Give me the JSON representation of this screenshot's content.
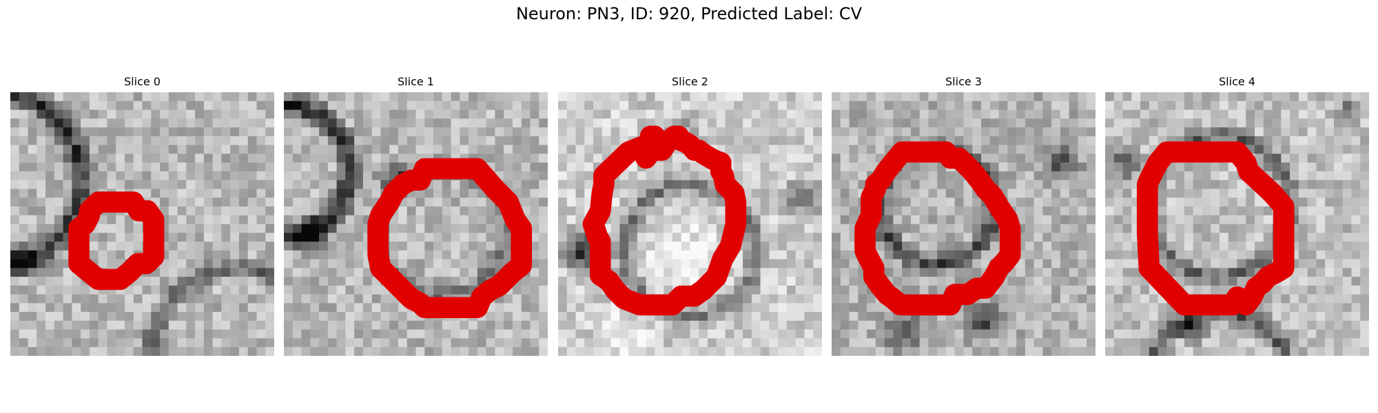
{
  "figure": {
    "title": "Neuron: PN3, ID: 920, Predicted Label: CV"
  },
  "contour_color": "#e00000",
  "panels": [
    {
      "title": "Slice 0"
    },
    {
      "title": "Slice 1"
    },
    {
      "title": "Slice 2"
    },
    {
      "title": "Slice 3"
    },
    {
      "title": "Slice 4"
    }
  ]
}
